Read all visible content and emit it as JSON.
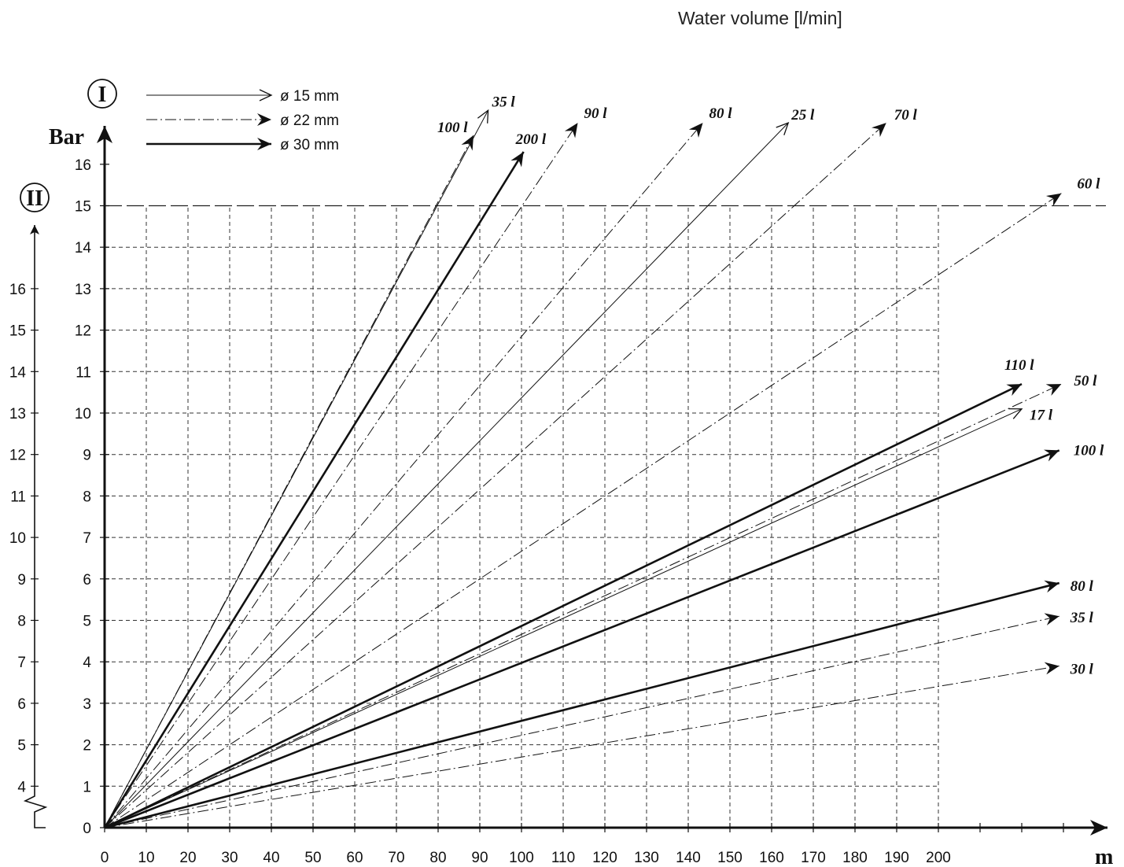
{
  "chart_data": {
    "type": "line",
    "title": "Water volume [l/min]",
    "xlabel": "m",
    "ylabel": "Bar",
    "xlim": [
      0,
      200
    ],
    "ylim": [
      0,
      16
    ],
    "x_ticks": [
      0,
      10,
      20,
      30,
      40,
      50,
      60,
      70,
      80,
      90,
      100,
      110,
      120,
      130,
      140,
      150,
      160,
      170,
      180,
      190,
      200
    ],
    "y_ticks": [
      0,
      1,
      2,
      3,
      4,
      5,
      6,
      7,
      8,
      9,
      10,
      11,
      12,
      13,
      14,
      15,
      16
    ],
    "axis_markers": {
      "primary": "I",
      "secondary": "II"
    },
    "secondary_axis": {
      "ticks": [
        4,
        5,
        6,
        7,
        8,
        9,
        10,
        11,
        12,
        13,
        14,
        15,
        16
      ],
      "offset_from_primary": 3
    },
    "max_pressure_line": 15,
    "grid": true,
    "legend": {
      "placement": "top-left",
      "entries": [
        {
          "label": "ø 15 mm",
          "style": "thin-solid"
        },
        {
          "label": "ø 22 mm",
          "style": "dash-dot"
        },
        {
          "label": "ø 30 mm",
          "style": "thick-solid"
        }
      ]
    },
    "series": [
      {
        "name": "35 l",
        "pipe": "ø 15 mm",
        "end": [
          92,
          17.3
        ]
      },
      {
        "name": "100 l",
        "pipe": "ø 22 mm",
        "end": [
          88.5,
          16.7
        ]
      },
      {
        "name": "200 l",
        "pipe": "ø 30 mm",
        "end": [
          100.5,
          16.3
        ]
      },
      {
        "name": "90 l",
        "pipe": "ø 22 mm",
        "end": [
          113.5,
          17.0
        ]
      },
      {
        "name": "80 l",
        "pipe": "ø 22 mm",
        "end": [
          143.5,
          17.0
        ]
      },
      {
        "name": "25 l",
        "pipe": "ø 15 mm",
        "end": [
          164,
          17.0
        ]
      },
      {
        "name": "70 l",
        "pipe": "ø 22 mm",
        "end": [
          187.5,
          17.0
        ]
      },
      {
        "name": "60 l",
        "pipe": "ø 22 mm",
        "end": [
          229.5,
          15.3
        ]
      },
      {
        "name": "110 l",
        "pipe": "ø 30 mm",
        "end": [
          220,
          10.7
        ]
      },
      {
        "name": "50 l",
        "pipe": "ø 22 mm",
        "end": [
          229.5,
          10.7
        ]
      },
      {
        "name": "17 l",
        "pipe": "ø 15 mm",
        "end": [
          220,
          10.1
        ]
      },
      {
        "name": "100 l",
        "pipe": "ø 30 mm",
        "end": [
          229,
          9.1
        ]
      },
      {
        "name": "80 l",
        "pipe": "ø 30 mm",
        "end": [
          229,
          5.9
        ]
      },
      {
        "name": "35 l",
        "pipe": "ø 22 mm",
        "end": [
          229,
          5.1
        ]
      },
      {
        "name": "30 l",
        "pipe": "ø 22 mm",
        "end": [
          229,
          3.9
        ]
      }
    ]
  }
}
